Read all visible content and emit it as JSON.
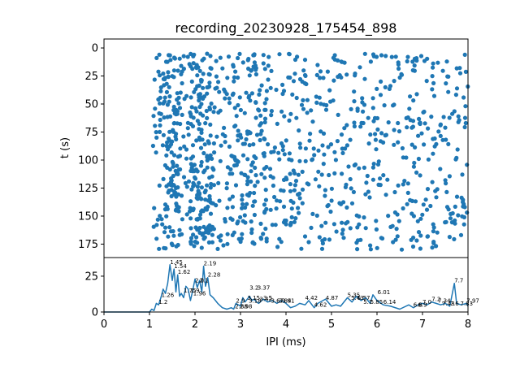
{
  "title": "recording_20230928_175454_898",
  "colors": {
    "series": "#1f77b4",
    "axes": "#000000",
    "background": "#ffffff"
  },
  "chart_data": [
    {
      "type": "scatter",
      "title": "recording_20230928_175454_898",
      "xlabel": "",
      "ylabel": "t (s)",
      "xlim": [
        0,
        8
      ],
      "ylim": [
        187,
        -8
      ],
      "y_inverted": true,
      "yticks": [
        0,
        25,
        50,
        75,
        100,
        125,
        150,
        175
      ],
      "grid": false,
      "band_density": [
        {
          "x_range": [
            1.05,
            1.3
          ],
          "t_range": [
            5,
            180
          ],
          "density": 0.35
        },
        {
          "x_range": [
            1.3,
            1.65
          ],
          "t_range": [
            5,
            180
          ],
          "density": 1.0
        },
        {
          "x_range": [
            1.65,
            1.9
          ],
          "t_range": [
            5,
            180
          ],
          "density": 0.4
        },
        {
          "x_range": [
            1.9,
            2.4
          ],
          "t_range": [
            5,
            180
          ],
          "density": 1.0
        },
        {
          "x_range": [
            2.4,
            2.8
          ],
          "t_range": [
            5,
            180
          ],
          "density": 0.35
        },
        {
          "x_range": [
            2.8,
            3.6
          ],
          "t_range": [
            5,
            180
          ],
          "density": 0.55
        },
        {
          "x_range": [
            3.6,
            8.0
          ],
          "t_range": [
            5,
            180
          ],
          "density": 0.3
        }
      ]
    },
    {
      "type": "line",
      "title": "",
      "xlabel": "IPI (ms)",
      "ylabel": "",
      "xlim": [
        0,
        8
      ],
      "ylim": [
        0,
        38
      ],
      "xticks": [
        0,
        1,
        2,
        3,
        4,
        5,
        6,
        7,
        8
      ],
      "yticks": [
        0,
        25
      ],
      "grid": false,
      "series": [
        {
          "x": [
            0,
            0.5,
            1.0,
            1.05,
            1.1,
            1.15,
            1.2,
            1.25,
            1.3,
            1.35,
            1.4,
            1.45,
            1.5,
            1.54,
            1.58,
            1.62,
            1.66,
            1.7,
            1.75,
            1.8,
            1.85,
            1.9,
            1.95,
            2.0,
            2.05,
            2.1,
            2.15,
            2.19,
            2.23,
            2.28,
            2.33,
            2.4,
            2.5,
            2.6,
            2.7,
            2.8,
            2.85,
            2.9,
            3.0,
            3.05,
            3.1,
            3.15,
            3.2,
            3.25,
            3.3,
            3.35,
            3.4,
            3.5,
            3.6,
            3.7,
            3.8,
            3.9,
            4.0,
            4.1,
            4.2,
            4.3,
            4.42,
            4.5,
            4.62,
            4.7,
            4.87,
            5.0,
            5.1,
            5.2,
            5.35,
            5.45,
            5.55,
            5.65,
            5.75,
            5.85,
            5.91,
            6.0,
            6.14,
            6.3,
            6.5,
            6.7,
            6.8,
            6.9,
            7.0,
            7.1,
            7.2,
            7.3,
            7.4,
            7.5,
            7.6,
            7.7,
            7.75,
            7.85,
            7.97,
            8.0
          ],
          "y": [
            0,
            0,
            0,
            2,
            1,
            6,
            5,
            10,
            16,
            13,
            20,
            33,
            22,
            30,
            14,
            26,
            11,
            13,
            10,
            18,
            16,
            8,
            15,
            23,
            17,
            22,
            14,
            32,
            18,
            24,
            12,
            10,
            6,
            3,
            2,
            3,
            2,
            6,
            4,
            10,
            7,
            9,
            11,
            8,
            9,
            7,
            6,
            9,
            7,
            8,
            6,
            8,
            6,
            3,
            4,
            6,
            5,
            8,
            3,
            6,
            9,
            4,
            5,
            4,
            10,
            7,
            11,
            8,
            10,
            6,
            12,
            8,
            5,
            4,
            2,
            5,
            3,
            5,
            6,
            5,
            7,
            6,
            5,
            6,
            4,
            20,
            6,
            5,
            6,
            4
          ]
        }
      ],
      "annotations": [
        {
          "text": "1.45",
          "x": 1.45,
          "y": 33
        },
        {
          "text": "1.54",
          "x": 1.54,
          "y": 30
        },
        {
          "text": "1.62",
          "x": 1.62,
          "y": 26
        },
        {
          "text": "1.26",
          "x": 1.26,
          "y": 10
        },
        {
          "text": "1.2",
          "x": 1.2,
          "y": 5
        },
        {
          "text": "1.75",
          "x": 1.75,
          "y": 13
        },
        {
          "text": "1.9",
          "x": 1.9,
          "y": 13
        },
        {
          "text": "1.96",
          "x": 1.96,
          "y": 11
        },
        {
          "text": "2.0",
          "x": 2.0,
          "y": 20
        },
        {
          "text": "2.1",
          "x": 2.1,
          "y": 20
        },
        {
          "text": "2.19",
          "x": 2.19,
          "y": 32
        },
        {
          "text": "2.28",
          "x": 2.28,
          "y": 24
        },
        {
          "text": "2.9",
          "x": 2.9,
          "y": 6
        },
        {
          "text": "2.88",
          "x": 2.88,
          "y": 2
        },
        {
          "text": "2.98",
          "x": 2.98,
          "y": 2
        },
        {
          "text": "3.15",
          "x": 3.15,
          "y": 8
        },
        {
          "text": "3.18",
          "x": 3.18,
          "y": 6
        },
        {
          "text": "3.2",
          "x": 3.2,
          "y": 15
        },
        {
          "text": "3.37",
          "x": 3.37,
          "y": 15
        },
        {
          "text": "3.42",
          "x": 3.42,
          "y": 7
        },
        {
          "text": "3.5",
          "x": 3.5,
          "y": 8
        },
        {
          "text": "3.67",
          "x": 3.67,
          "y": 6
        },
        {
          "text": "3.84",
          "x": 3.84,
          "y": 6
        },
        {
          "text": "3.91",
          "x": 3.91,
          "y": 6
        },
        {
          "text": "4.42",
          "x": 4.42,
          "y": 8
        },
        {
          "text": "4.62",
          "x": 4.62,
          "y": 3
        },
        {
          "text": "4.87",
          "x": 4.87,
          "y": 8
        },
        {
          "text": "5.35",
          "x": 5.35,
          "y": 10
        },
        {
          "text": "5.43",
          "x": 5.43,
          "y": 8
        },
        {
          "text": "5.57",
          "x": 5.57,
          "y": 8
        },
        {
          "text": "5.7",
          "x": 5.7,
          "y": 5
        },
        {
          "text": "5.85",
          "x": 5.85,
          "y": 5
        },
        {
          "text": "6.01",
          "x": 6.01,
          "y": 12
        },
        {
          "text": "6.14",
          "x": 6.14,
          "y": 5
        },
        {
          "text": "6.8",
          "x": 6.8,
          "y": 3
        },
        {
          "text": "6.9",
          "x": 6.9,
          "y": 3
        },
        {
          "text": "7.0",
          "x": 7.0,
          "y": 5
        },
        {
          "text": "7.2",
          "x": 7.2,
          "y": 7
        },
        {
          "text": "7.34",
          "x": 7.34,
          "y": 6
        },
        {
          "text": "7.43",
          "x": 7.43,
          "y": 4
        },
        {
          "text": "7.6",
          "x": 7.6,
          "y": 4
        },
        {
          "text": "7.7",
          "x": 7.7,
          "y": 20
        },
        {
          "text": "7.83",
          "x": 7.83,
          "y": 4
        },
        {
          "text": "7.97",
          "x": 7.97,
          "y": 6
        }
      ]
    }
  ]
}
